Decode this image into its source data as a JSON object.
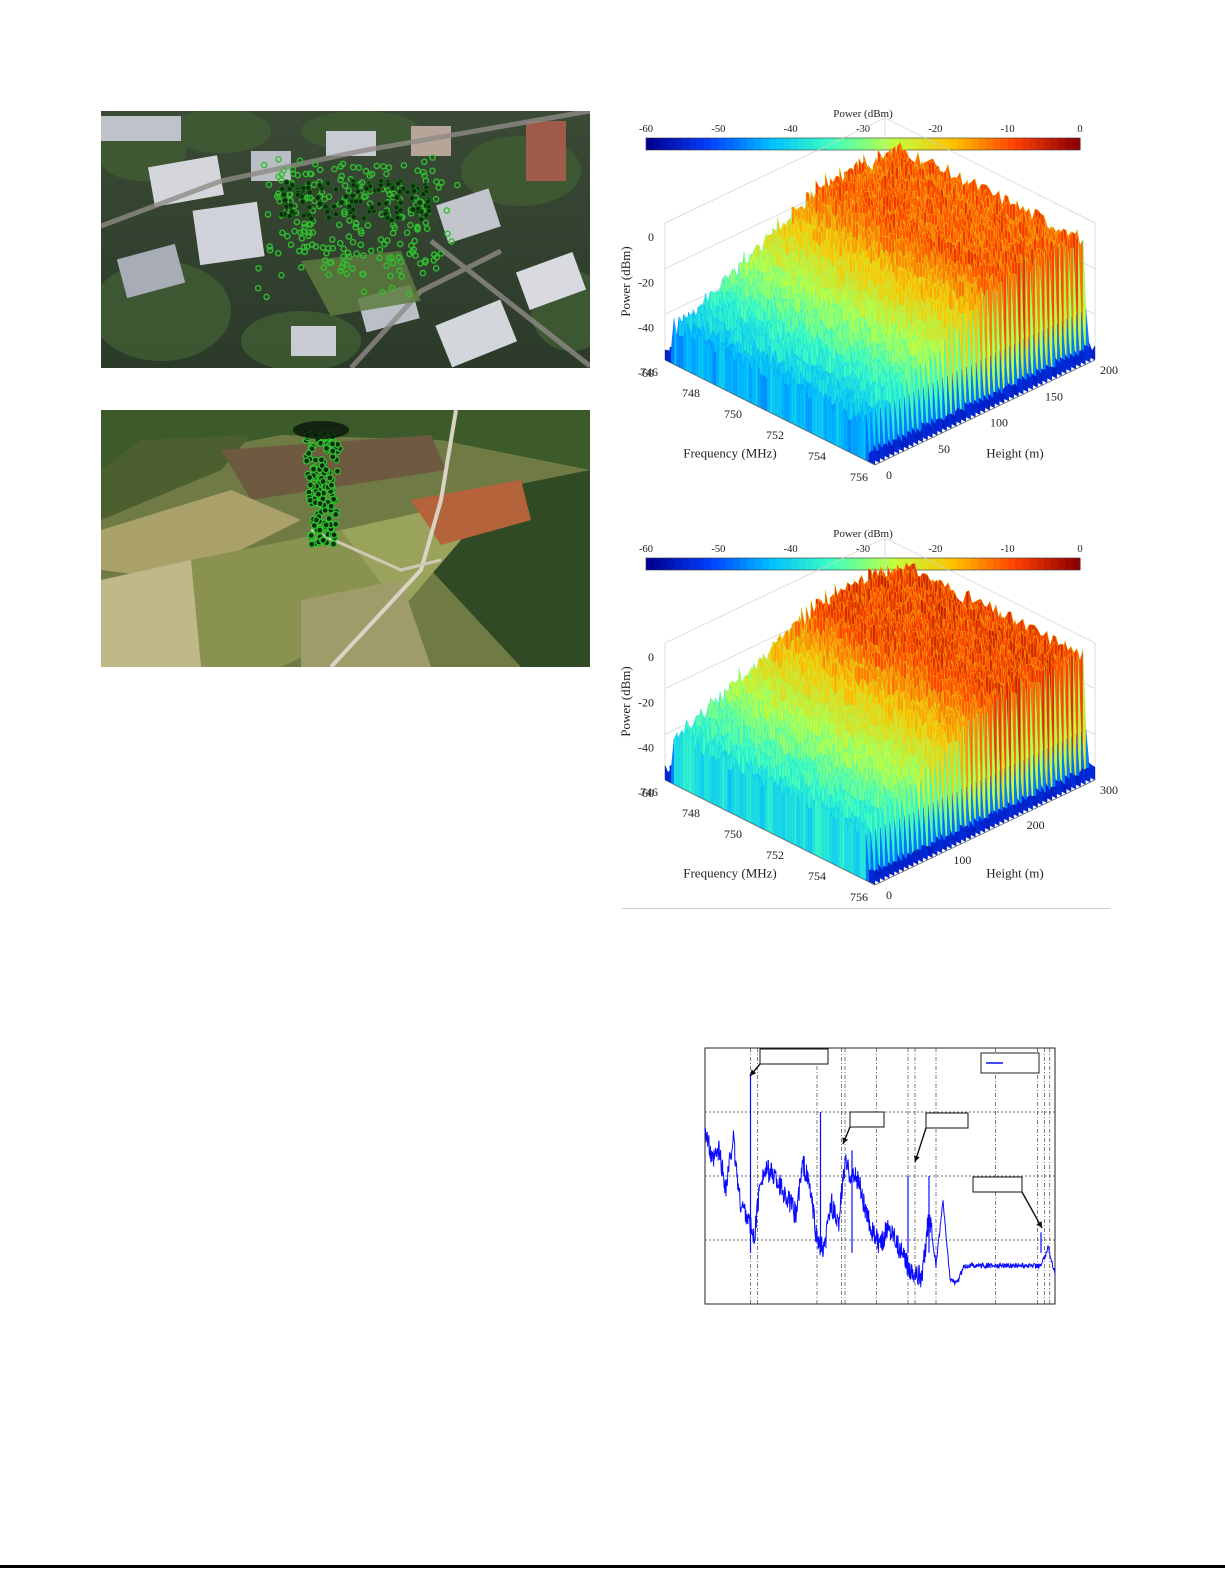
{
  "colors": {
    "drone_marker": "#2fbf2f",
    "line_series": "#0a0aff",
    "grid": "#555555",
    "colormap": [
      "#00008f",
      "#0040ff",
      "#00c0ff",
      "#40ffbf",
      "#c0ff40",
      "#ffc000",
      "#ff4000",
      "#8f0000"
    ]
  },
  "photos": [
    {
      "name": "urban-campus-aerial-photo",
      "description": "urban",
      "markers": "green circles"
    },
    {
      "name": "rural-field-aerial-photo",
      "description": "rural",
      "markers": "green circles"
    }
  ],
  "chart_data": [
    {
      "type": "surface3d",
      "colorbar": {
        "title": "Power (dBm)",
        "ticks": [
          "-60",
          "-50",
          "-40",
          "-30",
          "-20",
          "-10",
          "0"
        ]
      },
      "xlabel": "Frequency (MHz)",
      "ylabel": "Height (m)",
      "zlabel": "Power (dBm)",
      "x_ticks": [
        "746",
        "748",
        "750",
        "752",
        "754",
        "756"
      ],
      "y_ticks": [
        "0",
        "50",
        "100",
        "150",
        "200"
      ],
      "z_ticks": [
        "0",
        "-20",
        "-40",
        "-60"
      ],
      "xlim": [
        746,
        756
      ],
      "ylim": [
        0,
        200
      ],
      "zlim": [
        -60,
        0
      ],
      "band_mhz": [
        746.5,
        755.5
      ],
      "in_band_power_dbm": [
        -10,
        -45
      ],
      "noise_floor_dbm": -55
    },
    {
      "type": "surface3d",
      "colorbar": {
        "title": "Power (dBm)",
        "ticks": [
          "-60",
          "-50",
          "-40",
          "-30",
          "-20",
          "-10",
          "0"
        ]
      },
      "xlabel": "Frequency (MHz)",
      "ylabel": "Height (m)",
      "zlabel": "Power (dBm)",
      "x_ticks": [
        "746",
        "748",
        "750",
        "752",
        "754",
        "756"
      ],
      "y_ticks": [
        "0",
        "100",
        "200",
        "300"
      ],
      "z_ticks": [
        "0",
        "-20",
        "-40",
        "-60"
      ],
      "xlim": [
        746,
        756
      ],
      "ylim": [
        0,
        300
      ],
      "zlim": [
        -60,
        0
      ],
      "band_mhz": [
        746.5,
        755.5
      ],
      "in_band_power_dbm": [
        -8,
        -40
      ],
      "noise_floor_dbm": -55
    },
    {
      "type": "line",
      "legend": [
        ""
      ],
      "annotations": [
        "",
        "",
        "",
        ""
      ],
      "grid": true,
      "x_norm": [
        0,
        0.02,
        0.04,
        0.06,
        0.08,
        0.1,
        0.12,
        0.14,
        0.16,
        0.18,
        0.2,
        0.22,
        0.24,
        0.26,
        0.28,
        0.3,
        0.32,
        0.34,
        0.36,
        0.38,
        0.4,
        0.42,
        0.44,
        0.46,
        0.48,
        0.5,
        0.52,
        0.54,
        0.56,
        0.58,
        0.6,
        0.62,
        0.64,
        0.66,
        0.68,
        0.7,
        0.72,
        0.74,
        0.76,
        0.78,
        0.8,
        0.82,
        0.84,
        0.86,
        0.88,
        0.9,
        0.92,
        0.94,
        0.96,
        0.98,
        1.0
      ],
      "y_norm": [
        0.7,
        0.55,
        0.6,
        0.45,
        0.65,
        0.4,
        0.35,
        0.25,
        0.5,
        0.52,
        0.5,
        0.45,
        0.4,
        0.35,
        0.55,
        0.45,
        0.25,
        0.2,
        0.4,
        0.3,
        0.55,
        0.5,
        0.48,
        0.35,
        0.28,
        0.22,
        0.3,
        0.28,
        0.2,
        0.15,
        0.12,
        0.1,
        0.35,
        0.15,
        0.4,
        0.1,
        0.08,
        0.15,
        0.15,
        0.15,
        0.15,
        0.15,
        0.15,
        0.15,
        0.15,
        0.15,
        0.15,
        0.15,
        0.15,
        0.22,
        0.12
      ]
    }
  ]
}
